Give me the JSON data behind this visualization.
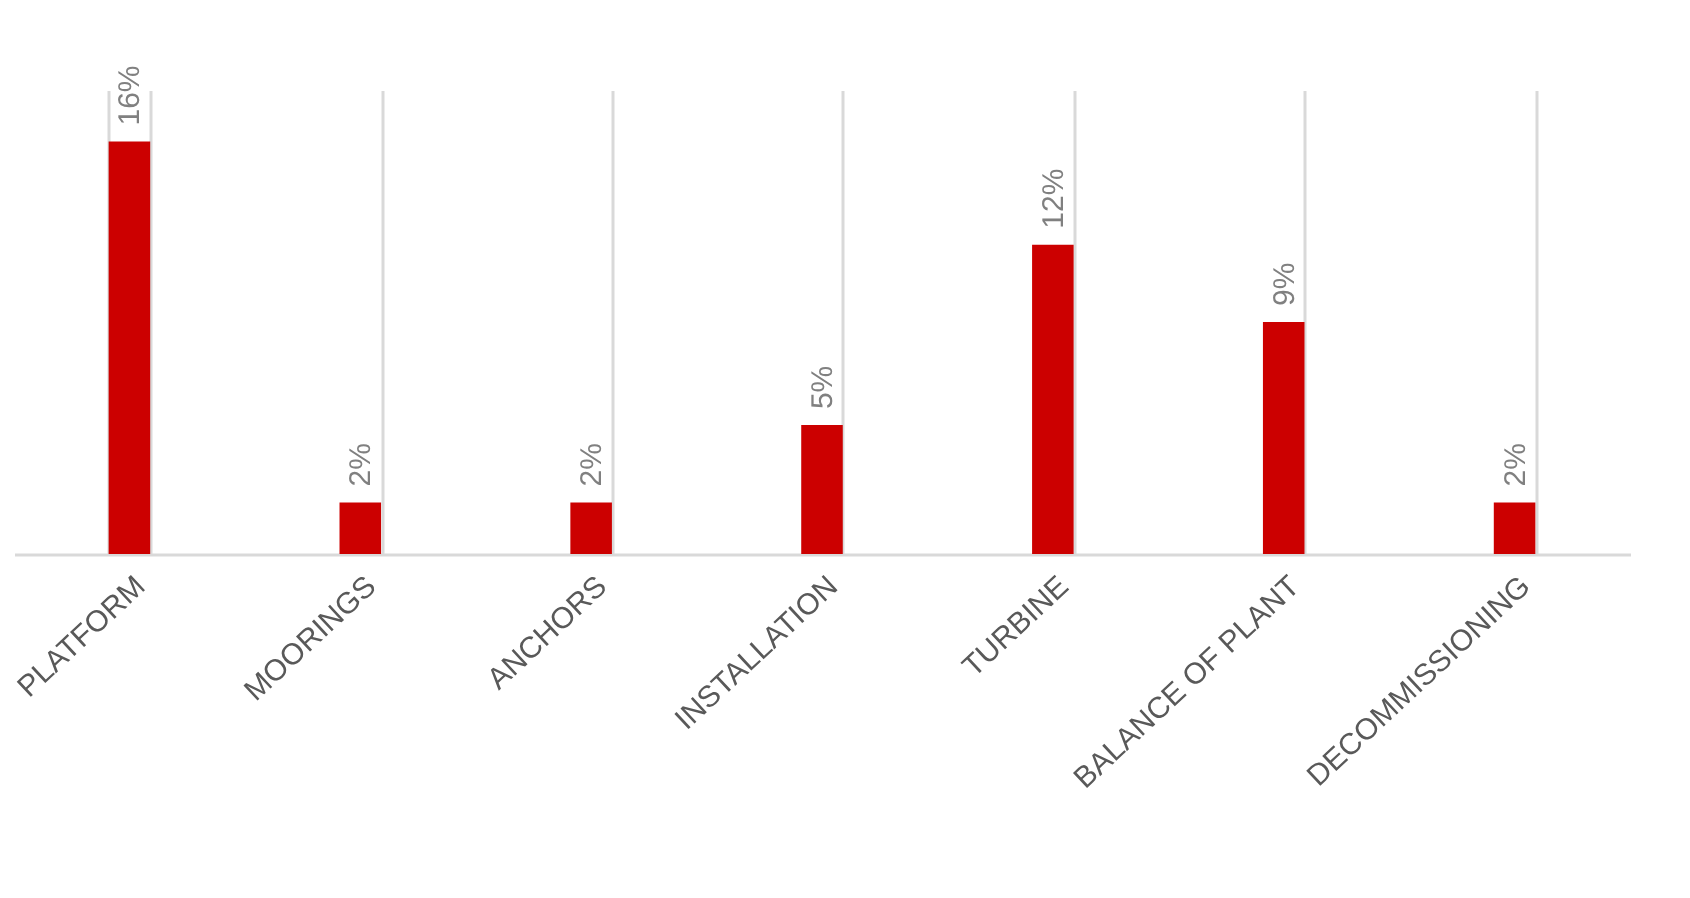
{
  "chart_data": {
    "type": "bar",
    "categories": [
      "PLATFORM",
      "MOORINGS",
      "ANCHORS",
      "INSTALLATION",
      "TURBINE",
      "BALANCE OF PLANT",
      "DECOMMISSIONING"
    ],
    "values": [
      16,
      2,
      2,
      5,
      12,
      9,
      2
    ],
    "value_labels": [
      "16%",
      "2%",
      "2%",
      "5%",
      "12%",
      "9%",
      "2%"
    ],
    "color": "#cc0000",
    "ylim": [
      0,
      18
    ],
    "grid": "x"
  }
}
